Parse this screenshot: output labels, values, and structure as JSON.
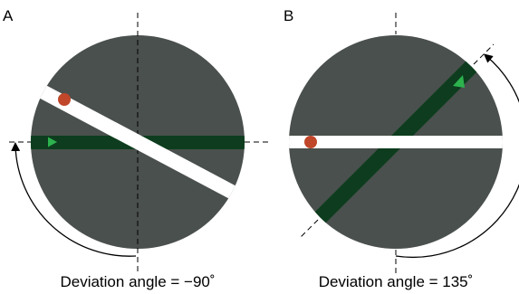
{
  "panels": [
    {
      "letter": "A",
      "caption": "Deviation angle = −90˚",
      "colors": {
        "disk": "#4a504d",
        "white_bar": "#ffffff",
        "green_bar": "#0d3d1e",
        "dot": "#c0472a",
        "arrowhead": "#2db24e"
      }
    },
    {
      "letter": "B",
      "caption": "Deviation angle = 135˚",
      "colors": {
        "disk": "#4a504d",
        "white_bar": "#ffffff",
        "green_bar": "#0d3d1e",
        "dot": "#c0472a",
        "arrowhead": "#2db24e"
      }
    }
  ]
}
